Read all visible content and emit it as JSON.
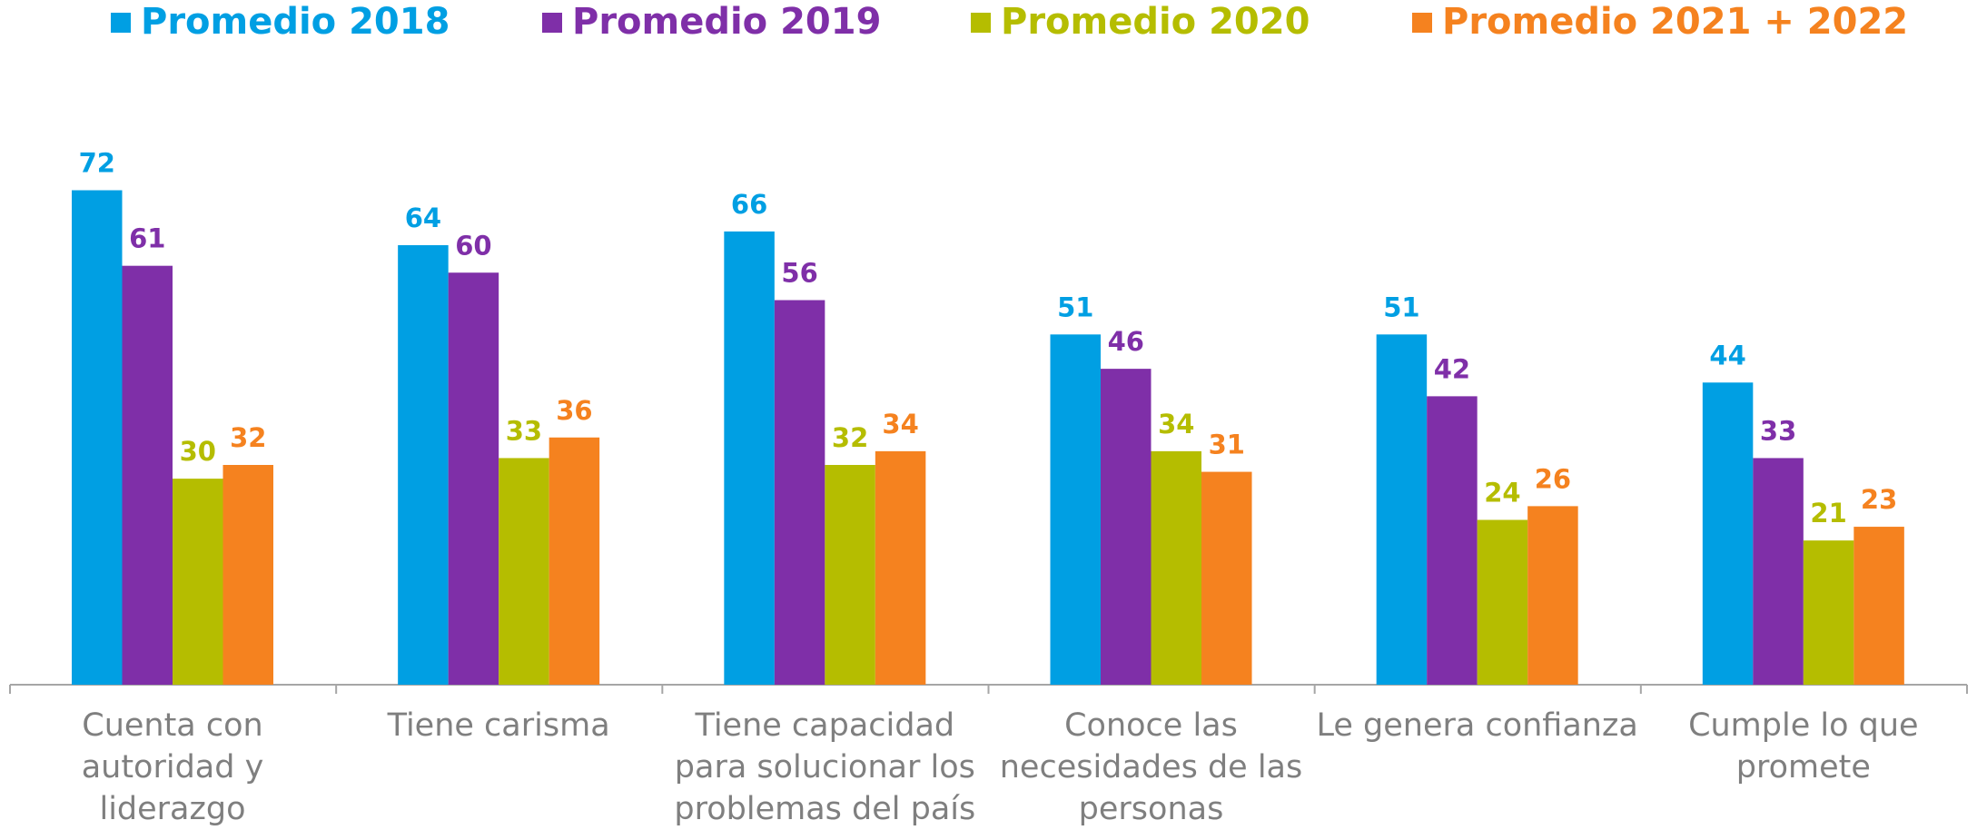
{
  "chart_data": {
    "type": "bar",
    "categories": [
      "Cuenta con autoridad y liderazgo",
      "Tiene carisma",
      "Tiene capacidad para solucionar los problemas del país",
      "Conoce las necesidades de las personas",
      "Le genera confianza",
      "Cumple lo que promete"
    ],
    "series": [
      {
        "name": "Promedio 2018",
        "color": "#009fe3",
        "values": [
          72,
          64,
          66,
          51,
          51,
          44
        ]
      },
      {
        "name": "Promedio 2019",
        "color": "#7f2fa8",
        "values": [
          61,
          60,
          56,
          46,
          42,
          33
        ]
      },
      {
        "name": "Promedio 2020",
        "color": "#b5bd00",
        "values": [
          30,
          33,
          32,
          34,
          24,
          21
        ]
      },
      {
        "name": "Promedio 2021 + 2022",
        "color": "#f5821f",
        "values": [
          32,
          36,
          34,
          31,
          26,
          23
        ]
      }
    ],
    "ylim": [
      0,
      80
    ],
    "legend": "top"
  }
}
